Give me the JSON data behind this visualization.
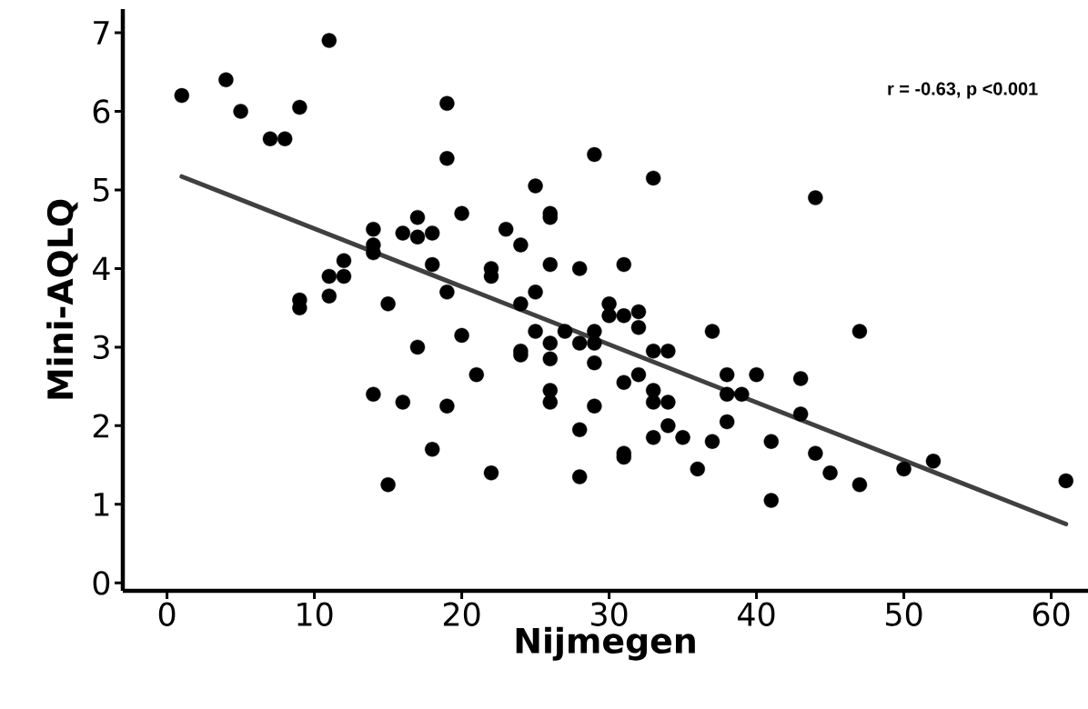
{
  "chart_data": {
    "type": "scatter",
    "xlabel": "Nijmegen",
    "ylabel": "Mini-AQLQ",
    "annotations": [
      "r = -0.63, p <0.001"
    ],
    "xlim": [
      -3,
      62.5
    ],
    "ylim": [
      -0.1,
      7.3
    ],
    "xticks": [
      0,
      10,
      20,
      30,
      40,
      50,
      60
    ],
    "yticks": [
      0,
      1,
      2,
      3,
      4,
      5,
      6,
      7
    ],
    "grid": false,
    "series": [
      {
        "color": "#000000",
        "marker": "circle",
        "x": [
          1,
          4,
          5,
          7,
          8,
          9,
          9,
          9,
          11,
          11,
          11,
          12,
          12,
          14,
          14,
          14,
          14,
          15,
          15,
          16,
          16,
          17,
          17,
          17,
          18,
          18,
          18,
          19,
          19,
          19,
          19,
          20,
          20,
          21,
          22,
          22,
          22,
          23,
          24,
          24,
          24,
          24,
          25,
          25,
          25,
          26,
          26,
          26,
          26,
          26,
          26,
          26,
          27,
          28,
          28,
          28,
          28,
          29,
          29,
          29,
          29,
          29,
          30,
          30,
          31,
          31,
          31,
          31,
          31,
          32,
          32,
          32,
          33,
          33,
          33,
          33,
          33,
          34,
          34,
          34,
          35,
          36,
          37,
          37,
          38,
          38,
          38,
          39,
          40,
          41,
          41,
          43,
          43,
          44,
          44,
          45,
          47,
          47,
          50,
          52,
          61
        ],
        "values": [
          6.2,
          6.4,
          6.0,
          5.65,
          5.65,
          6.05,
          3.6,
          3.5,
          6.9,
          3.9,
          3.65,
          4.1,
          3.9,
          4.5,
          4.3,
          4.2,
          2.4,
          3.55,
          1.25,
          4.45,
          2.3,
          4.65,
          4.4,
          3.0,
          4.45,
          4.05,
          1.7,
          6.1,
          5.4,
          3.7,
          2.25,
          4.7,
          3.15,
          2.65,
          4.0,
          3.9,
          1.4,
          4.5,
          4.3,
          3.55,
          2.95,
          2.9,
          5.05,
          3.7,
          3.2,
          4.7,
          4.65,
          4.05,
          3.05,
          2.85,
          2.45,
          2.3,
          3.2,
          4.0,
          3.05,
          1.95,
          1.35,
          5.45,
          3.2,
          3.05,
          2.8,
          2.25,
          3.55,
          3.4,
          4.05,
          3.4,
          2.55,
          1.65,
          1.6,
          3.45,
          3.25,
          2.65,
          5.15,
          2.95,
          2.45,
          2.3,
          1.85,
          2.95,
          2.3,
          2.0,
          1.85,
          1.45,
          3.2,
          1.8,
          2.65,
          2.4,
          2.05,
          2.4,
          2.65,
          1.8,
          1.05,
          2.6,
          2.15,
          4.9,
          1.65,
          1.4,
          3.2,
          1.25,
          1.45,
          1.55,
          1.3
        ]
      },
      {
        "type": "line",
        "color": "#404040",
        "x": [
          1,
          61
        ],
        "values": [
          5.17,
          0.75
        ]
      }
    ]
  }
}
